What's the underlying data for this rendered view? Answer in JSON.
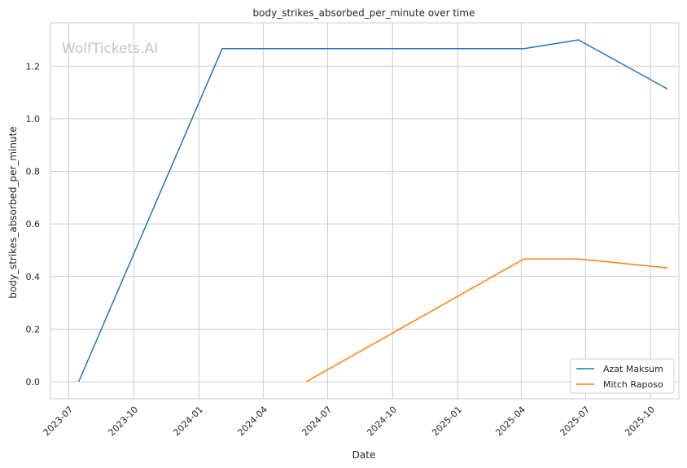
{
  "chart_data": {
    "type": "line",
    "title": "body_strikes_absorbed_per_minute over time",
    "xlabel": "Date",
    "ylabel": "body_strikes_absorbed_per_minute",
    "watermark": "WolfTickets.AI",
    "x_ticks": [
      "2023-07",
      "2023-10",
      "2024-01",
      "2024-04",
      "2024-07",
      "2024-10",
      "2025-01",
      "2025-04",
      "2025-07",
      "2025-10"
    ],
    "y_ticks": [
      "0.0",
      "0.2",
      "0.4",
      "0.6",
      "0.8",
      "1.0",
      "1.2"
    ],
    "xlim": [
      "2023-06-05",
      "2025-11-10"
    ],
    "ylim": [
      -0.065,
      1.365
    ],
    "grid": true,
    "legend_position": "bottom-right",
    "series": [
      {
        "name": "Azat Maksum",
        "color": "#1f77b4",
        "x": [
          "2023-07-15",
          "2024-02-03",
          "2025-04-05",
          "2025-06-21",
          "2025-10-25"
        ],
        "y": [
          0.0,
          1.267,
          1.267,
          1.3,
          1.113
        ]
      },
      {
        "name": "Mitch Raposo",
        "color": "#ff7f0e",
        "x": [
          "2024-06-01",
          "2025-04-05",
          "2025-06-21",
          "2025-10-25"
        ],
        "y": [
          0.0,
          0.467,
          0.467,
          0.433
        ]
      }
    ]
  }
}
